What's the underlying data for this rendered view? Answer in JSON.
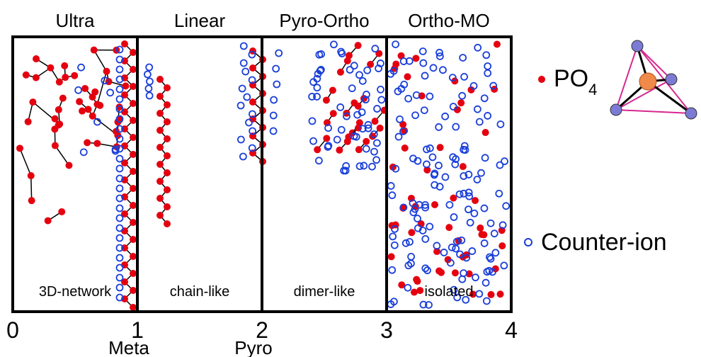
{
  "regions": [
    {
      "title": "Ultra",
      "label": "3D-network"
    },
    {
      "title": "Linear",
      "label": "chain-like"
    },
    {
      "title": "Pyro-Ortho",
      "label": "dimer-like"
    },
    {
      "title": "Ortho-MO",
      "label": "isolated"
    }
  ],
  "axis": {
    "ticks": [
      0,
      1,
      2,
      3,
      4
    ],
    "markers": [
      {
        "value": 1,
        "label": "Meta"
      },
      {
        "value": 2,
        "label": "Pyro"
      }
    ]
  },
  "legend": {
    "po4": {
      "label": "PO",
      "subscript": "4"
    },
    "counter_ion": "Counter-ion"
  }
}
